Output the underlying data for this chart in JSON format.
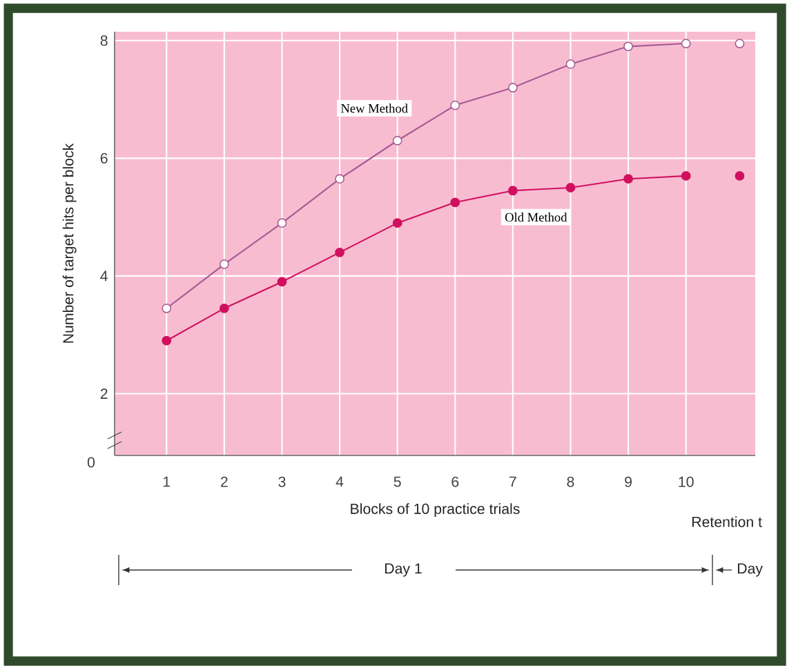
{
  "chart_data": {
    "type": "line",
    "xlabel": "Blocks of 10 practice trials",
    "ylabel": "Number of target hits per block",
    "xlim": [
      0.1,
      11.2
    ],
    "ylim": [
      0.95,
      8.15
    ],
    "xticks": [
      1,
      2,
      3,
      4,
      5,
      6,
      7,
      8,
      9,
      10
    ],
    "yticks": [
      2,
      4,
      6,
      8
    ],
    "grid": true,
    "marker": "circle",
    "series": [
      {
        "name": "New Method",
        "color": "#a85a93",
        "x": [
          1,
          2,
          3,
          4,
          5,
          6,
          7,
          8,
          9,
          10
        ],
        "values": [
          3.45,
          4.2,
          4.9,
          5.65,
          6.3,
          6.9,
          7.2,
          7.6,
          7.9,
          7.95
        ]
      },
      {
        "name": "Old Method",
        "color": "#d0105f",
        "x": [
          1,
          2,
          3,
          4,
          5,
          6,
          7,
          8,
          9,
          10
        ],
        "values": [
          2.9,
          3.45,
          3.9,
          4.4,
          4.9,
          5.25,
          5.45,
          5.5,
          5.65,
          5.7
        ]
      },
      {
        "type": "scatter",
        "color": "#a85a93",
        "x": [
          10.93
        ],
        "values": [
          7.95
        ]
      },
      {
        "type": "scatter",
        "color": "#d0105f",
        "x": [
          10.93
        ],
        "values": [
          5.7
        ]
      }
    ],
    "annotations": [
      "Retention t",
      "Day 1",
      "Day",
      "0"
    ]
  }
}
